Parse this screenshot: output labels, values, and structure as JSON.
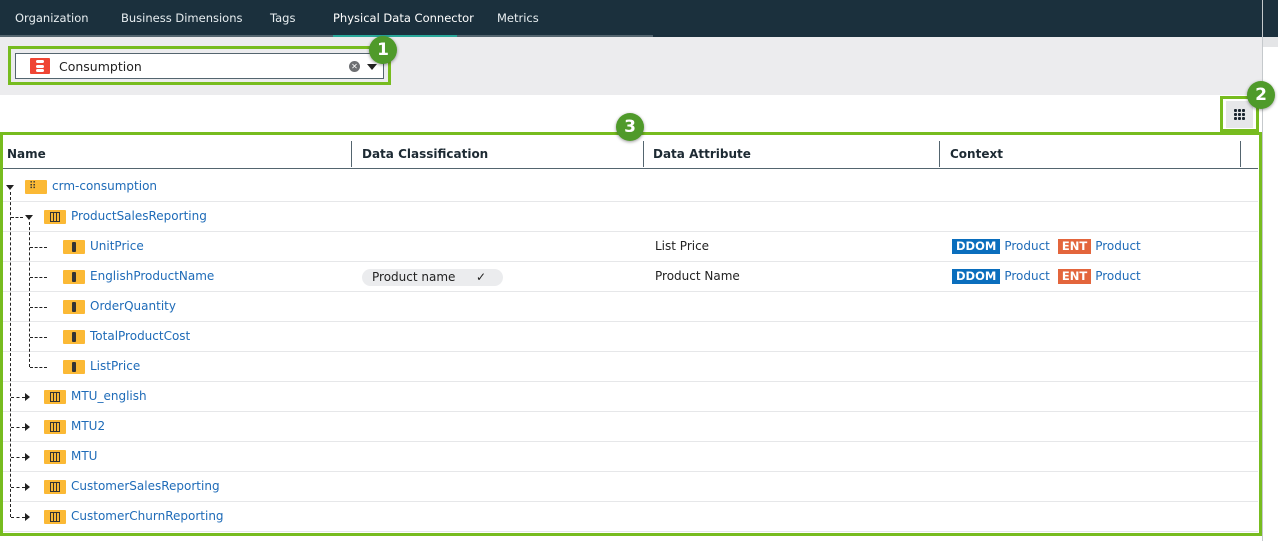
{
  "tabs": [
    {
      "label": "Organization",
      "active": false
    },
    {
      "label": "Business Dimensions",
      "active": false
    },
    {
      "label": "Tags",
      "active": false
    },
    {
      "label": "Physical Data Connector",
      "active": true
    },
    {
      "label": "Metrics",
      "active": false
    }
  ],
  "connector_select": {
    "value": "Consumption",
    "icon": "database-icon"
  },
  "callouts": [
    "1",
    "2",
    "3"
  ],
  "table": {
    "columns": [
      "Name",
      "Data Classification",
      "Data Attribute",
      "Context"
    ],
    "rows": [
      {
        "name": "crm-consumption",
        "type": "schema",
        "expanded": true
      },
      {
        "name": "ProductSalesReporting",
        "type": "table",
        "expanded": true
      },
      {
        "name": "UnitPrice",
        "type": "column",
        "attribute": "List Price",
        "context": [
          {
            "tag": "DDOM",
            "value": "Product"
          },
          {
            "tag": "ENT",
            "value": "Product"
          }
        ]
      },
      {
        "name": "EnglishProductName",
        "type": "column",
        "classification": "Product name",
        "attribute": "Product Name",
        "context": [
          {
            "tag": "DDOM",
            "value": "Product"
          },
          {
            "tag": "ENT",
            "value": "Product"
          }
        ]
      },
      {
        "name": "OrderQuantity",
        "type": "column"
      },
      {
        "name": "TotalProductCost",
        "type": "column"
      },
      {
        "name": "ListPrice",
        "type": "column"
      },
      {
        "name": "MTU_english",
        "type": "table",
        "expanded": false
      },
      {
        "name": "MTU2",
        "type": "table",
        "expanded": false
      },
      {
        "name": "MTU",
        "type": "table",
        "expanded": false
      },
      {
        "name": "CustomerSalesReporting",
        "type": "table",
        "expanded": false
      },
      {
        "name": "CustomerChurnReporting",
        "type": "table",
        "expanded": false
      }
    ]
  },
  "colors": {
    "highlight": "#77bc1f",
    "ddom": "#0a6ebd",
    "ent": "#e3653c",
    "link": "#1e6bb8",
    "topbar": "#1b303d"
  }
}
